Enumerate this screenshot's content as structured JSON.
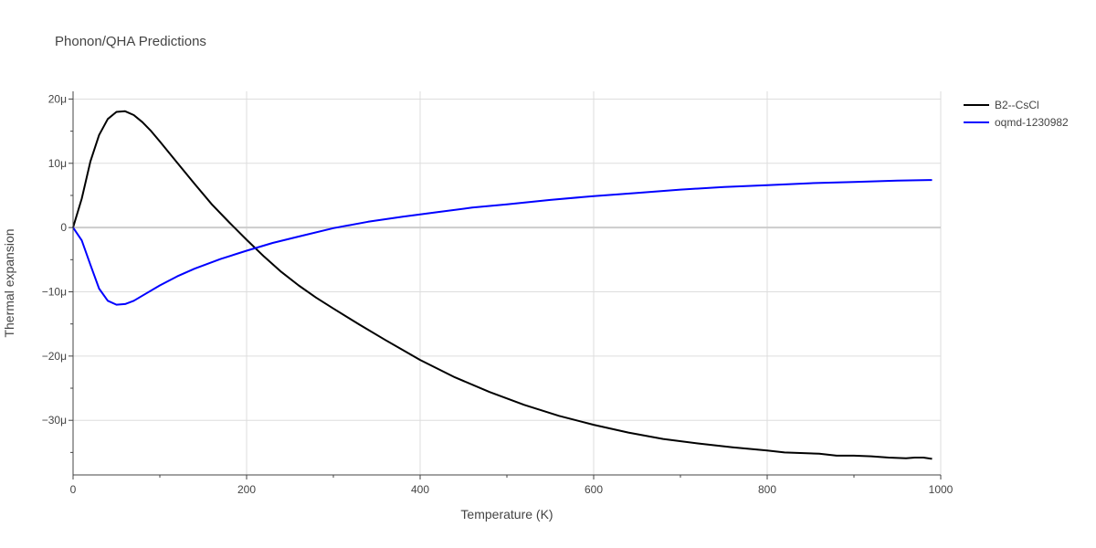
{
  "chart_data": {
    "type": "line",
    "title": "Phonon/QHA Predictions",
    "xlabel": "Temperature (K)",
    "ylabel": "Thermal expansion",
    "xlim": [
      0,
      1000
    ],
    "ylim": [
      -38.5,
      21.2
    ],
    "grid": true,
    "legend_position": "top-right",
    "x_ticks": [
      {
        "value": 0,
        "label": "0"
      },
      {
        "value": 200,
        "label": "200"
      },
      {
        "value": 400,
        "label": "400"
      },
      {
        "value": 600,
        "label": "600"
      },
      {
        "value": 800,
        "label": "800"
      },
      {
        "value": 1000,
        "label": "1000"
      }
    ],
    "y_ticks": [
      {
        "value": 20,
        "label": "20μ"
      },
      {
        "value": 10,
        "label": "10μ"
      },
      {
        "value": 0,
        "label": "0"
      },
      {
        "value": -10,
        "label": "−10μ"
      },
      {
        "value": -20,
        "label": "−20μ"
      },
      {
        "value": -30,
        "label": "−30μ"
      }
    ],
    "series": [
      {
        "name": "B2--CsCl",
        "color": "#000000",
        "x": [
          0,
          10,
          20,
          30,
          40,
          50,
          60,
          70,
          80,
          90,
          100,
          120,
          140,
          160,
          180,
          200,
          220,
          240,
          260,
          280,
          300,
          330,
          360,
          400,
          440,
          480,
          520,
          560,
          600,
          640,
          680,
          720,
          760,
          800,
          820,
          860,
          880,
          900,
          920,
          940,
          960,
          970,
          980,
          990
        ],
        "y": [
          0,
          4.5,
          10.3,
          14.4,
          16.9,
          18.0,
          18.1,
          17.5,
          16.4,
          15.0,
          13.4,
          10.1,
          6.8,
          3.6,
          0.8,
          -1.9,
          -4.5,
          -6.9,
          -9.0,
          -10.9,
          -12.6,
          -15.1,
          -17.5,
          -20.6,
          -23.3,
          -25.6,
          -27.6,
          -29.3,
          -30.7,
          -31.9,
          -32.9,
          -33.6,
          -34.2,
          -34.7,
          -35.0,
          -35.2,
          -35.5,
          -35.5,
          -35.6,
          -35.8,
          -35.9,
          -35.8,
          -35.8,
          -36.0
        ]
      },
      {
        "name": "oqmd-1230982",
        "color": "#0000ff",
        "x": [
          0,
          10,
          20,
          30,
          40,
          50,
          60,
          70,
          80,
          100,
          120,
          140,
          170,
          200,
          230,
          260,
          300,
          340,
          380,
          420,
          460,
          500,
          550,
          600,
          650,
          700,
          750,
          800,
          850,
          900,
          950,
          990
        ],
        "y": [
          0,
          -2.0,
          -5.8,
          -9.5,
          -11.4,
          -12.0,
          -11.9,
          -11.4,
          -10.6,
          -9.0,
          -7.6,
          -6.4,
          -4.9,
          -3.6,
          -2.4,
          -1.4,
          -0.1,
          0.9,
          1.7,
          2.4,
          3.1,
          3.6,
          4.3,
          4.9,
          5.4,
          5.9,
          6.3,
          6.6,
          6.9,
          7.1,
          7.3,
          7.4
        ]
      }
    ]
  }
}
